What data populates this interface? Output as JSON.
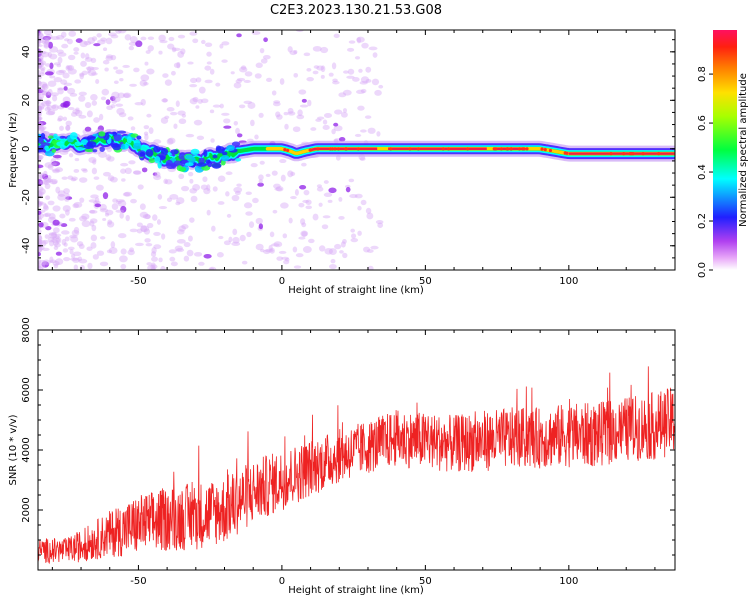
{
  "figure": {
    "title": "C2E3.2023.130.21.53.G08"
  },
  "chart_data": [
    {
      "type": "heatmap",
      "title": "C2E3.2023.130.21.53.G08",
      "xlabel": "Height of straight line (km)",
      "ylabel": "Frequency (Hz)",
      "xlim": [
        -85,
        137
      ],
      "ylim": [
        -50,
        49
      ],
      "xticks": [
        -50,
        0,
        50,
        100
      ],
      "xtick_labels": [
        "-50",
        "0",
        "50",
        "100"
      ],
      "yticks": [
        -40,
        -20,
        0,
        20,
        40
      ],
      "ytick_labels": [
        "-40",
        "-20",
        "0",
        "20",
        "40"
      ],
      "ridge": {
        "x": [
          -85,
          -80,
          -75,
          -70,
          -65,
          -60,
          -55,
          -50,
          -45,
          -40,
          -35,
          -30,
          -25,
          -20,
          -15,
          -10,
          -5,
          0,
          3,
          5,
          8,
          12,
          20,
          30,
          40,
          50,
          60,
          70,
          80,
          90,
          100,
          110,
          120,
          130,
          137
        ],
        "frequency_hz": [
          1,
          2,
          2,
          2,
          3,
          4,
          3,
          1,
          -2,
          -4,
          -5,
          -5,
          -4,
          -2,
          -1,
          0,
          0,
          0,
          -1,
          -2,
          -1,
          0,
          0,
          0,
          0,
          0,
          0,
          0,
          0,
          0,
          -2,
          -2,
          -2,
          -2,
          -2
        ]
      },
      "colorbar": {
        "label": "Normalized spectral amplitude",
        "ticks": [
          0.0,
          0.2,
          0.4,
          0.6,
          0.8
        ],
        "tick_labels": [
          "0.0",
          "0.2",
          "0.4",
          "0.6",
          "0.8"
        ],
        "range": [
          0,
          0.98
        ],
        "colormap": "rainbow (magenta-blue-cyan-green-yellow-orange-red)"
      }
    },
    {
      "type": "line",
      "title": "",
      "xlabel": "Height of straight line (km)",
      "ylabel": "SNR (10 * v/v)",
      "xlim": [
        -85,
        137
      ],
      "ylim": [
        0,
        8000
      ],
      "xticks": [
        -50,
        0,
        50,
        100
      ],
      "xtick_labels": [
        "-50",
        "0",
        "50",
        "100"
      ],
      "yticks": [
        2000,
        4000,
        6000,
        8000
      ],
      "ytick_labels": [
        "2000",
        "4000",
        "6000",
        "8000"
      ],
      "series": [
        {
          "name": "SNR",
          "color": "#ee2222",
          "envelope_x": [
            -85,
            -75,
            -70,
            -60,
            -50,
            -40,
            -30,
            -20,
            -10,
            0,
            10,
            20,
            30,
            40,
            50,
            60,
            70,
            80,
            90,
            100,
            110,
            120,
            130,
            137
          ],
          "envelope_mean": [
            650,
            650,
            800,
            1200,
            1500,
            1700,
            1800,
            2000,
            2600,
            3000,
            3400,
            3800,
            4100,
            4400,
            4300,
            4200,
            4300,
            4400,
            4400,
            4500,
            4500,
            4700,
            4800,
            5000
          ],
          "envelope_spread": [
            350,
            350,
            450,
            650,
            850,
            900,
            950,
            950,
            900,
            850,
            800,
            750,
            750,
            800,
            800,
            800,
            850,
            850,
            850,
            900,
            900,
            900,
            950,
            950
          ]
        }
      ]
    }
  ],
  "colors": {
    "snr_line": "#ee2222",
    "ridge_core": "#ee2244",
    "axis": "#000000"
  }
}
